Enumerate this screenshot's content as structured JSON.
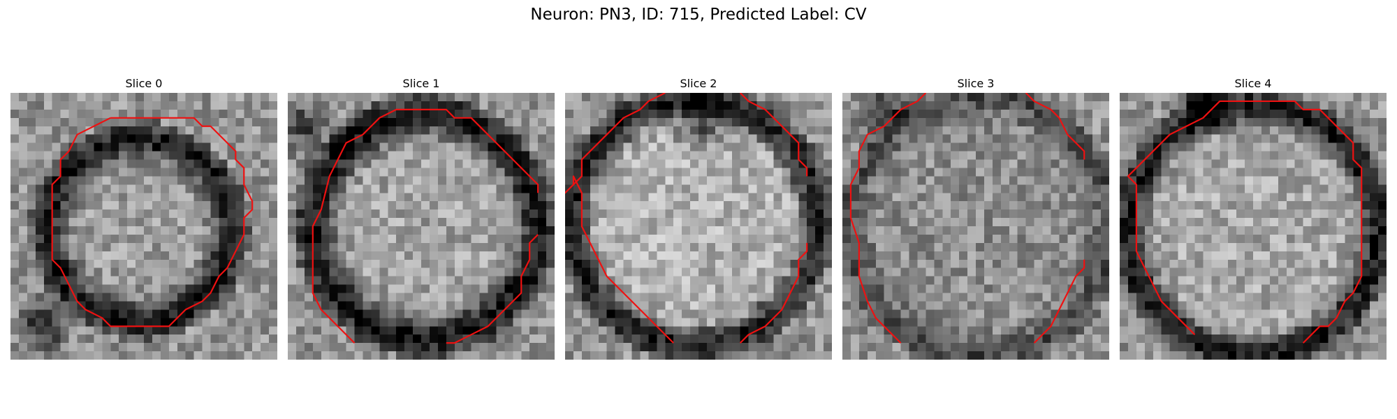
{
  "figure": {
    "title": "Neuron: PN3, ID: 715, Predicted Label: CV"
  },
  "panels": [
    {
      "title": "Slice 0"
    },
    {
      "title": "Slice 1"
    },
    {
      "title": "Slice 2"
    },
    {
      "title": "Slice 3"
    },
    {
      "title": "Slice 4"
    }
  ],
  "colors": {
    "contour": "#ee1111",
    "background": "#ffffff"
  }
}
